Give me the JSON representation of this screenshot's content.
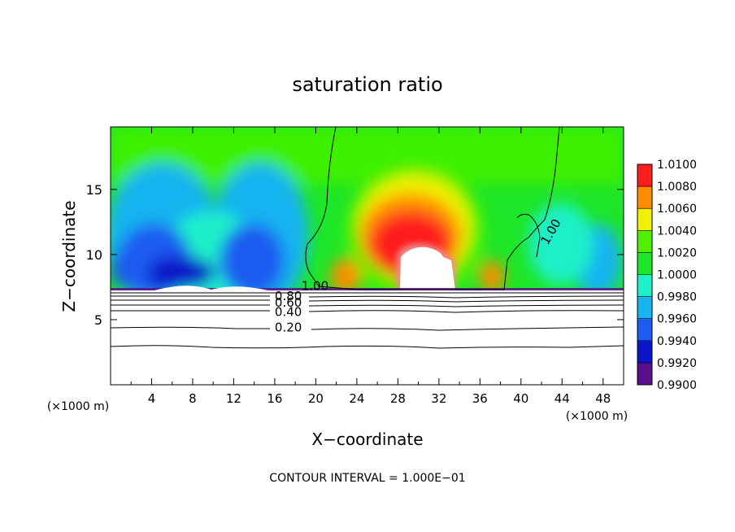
{
  "chart_data": {
    "type": "heatmap",
    "title": "saturation ratio",
    "xlabel": "X−coordinate",
    "ylabel": "Z−coordinate",
    "x_unit_left": "(×1000 m)",
    "x_unit_right": "(×1000 m)",
    "xlim": [
      0,
      50
    ],
    "ylim": [
      0,
      19.8
    ],
    "x_ticks": [
      4,
      8,
      12,
      16,
      20,
      24,
      28,
      32,
      36,
      40,
      44,
      48
    ],
    "y_ticks": [
      5,
      10,
      15
    ],
    "footer": "CONTOUR INTERVAL =  1.000E−01",
    "colorbar": {
      "levels": [
        "0.9900",
        "0.9920",
        "0.9940",
        "0.9960",
        "0.9980",
        "1.0000",
        "1.0020",
        "1.0040",
        "1.0060",
        "1.0080",
        "1.0100"
      ],
      "colors": [
        "#5a0f8a",
        "#0a14c8",
        "#1e5cf0",
        "#19b4f0",
        "#1ef0c8",
        "#1ee628",
        "#50f000",
        "#f0f000",
        "#ff8c00",
        "#ff1e1e",
        "#f08a8a"
      ]
    },
    "contour_labels": [
      {
        "text": "0.20",
        "x": 16.0,
        "z": 4.4
      },
      {
        "text": "0.40",
        "x": 16.0,
        "z": 5.6
      },
      {
        "text": "0.60",
        "x": 16.0,
        "z": 6.3
      },
      {
        "text": "0.80",
        "x": 16.0,
        "z": 6.8
      },
      {
        "text": "1.00",
        "x": 18.6,
        "z": 7.6
      },
      {
        "text": "1.00",
        "x": 42.6,
        "z": 11.0
      }
    ]
  }
}
